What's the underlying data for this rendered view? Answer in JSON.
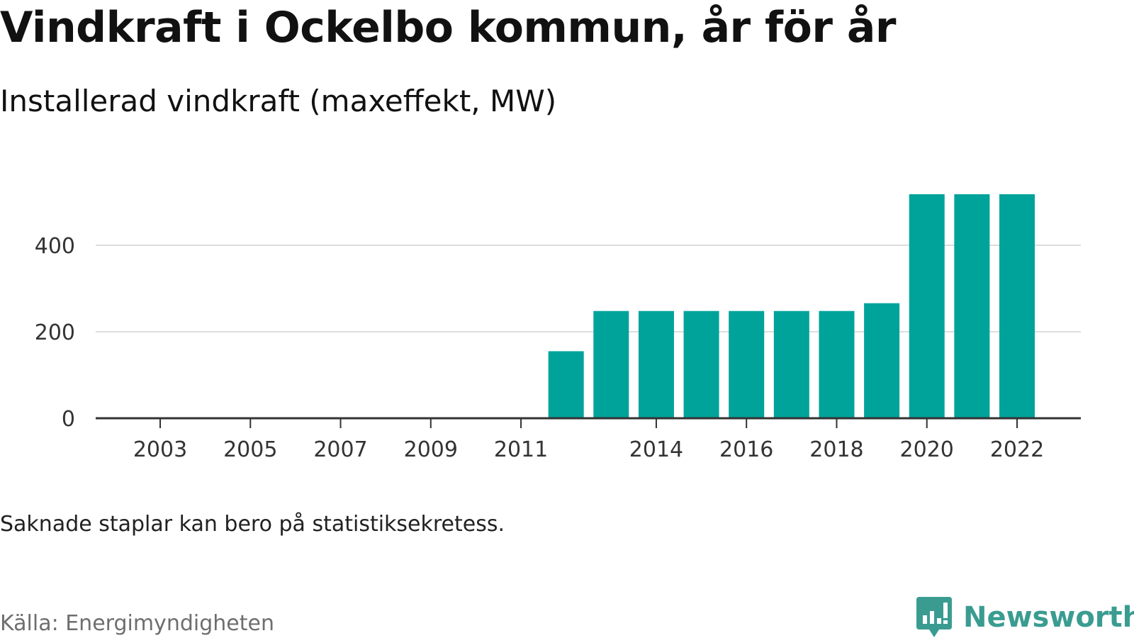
{
  "header": {
    "title": "Vindkraft i Ockelbo kommun, år för år",
    "subtitle": "Installerad vindkraft (maxeffekt, MW)"
  },
  "footer": {
    "note": "Saknade staplar kan bero på statistiksekretess.",
    "source": "Källa: Energimyndigheten",
    "brand": "Newsworthy",
    "brand_icon": "bar-chart-speech-bubble-icon"
  },
  "colors": {
    "bar": "#00a39a",
    "grid": "#dddddd",
    "axis": "#333333",
    "brand": "#3a9c91"
  },
  "chart_data": {
    "type": "bar",
    "categories": [
      2002,
      2003,
      2004,
      2005,
      2006,
      2007,
      2008,
      2009,
      2010,
      2011,
      2012,
      2013,
      2014,
      2015,
      2016,
      2017,
      2018,
      2019,
      2020,
      2021,
      2022
    ],
    "values": [
      null,
      null,
      null,
      null,
      null,
      null,
      null,
      null,
      null,
      null,
      155,
      248,
      248,
      248,
      248,
      248,
      248,
      266,
      518,
      518,
      518
    ],
    "x_tick_labels": [
      "2003",
      "2005",
      "2007",
      "2009",
      "2011",
      "2014",
      "2016",
      "2018",
      "2020",
      "2022"
    ],
    "y_ticks": [
      0,
      200,
      400
    ],
    "ylim": [
      0,
      518
    ],
    "grid": true,
    "legend": "none"
  }
}
